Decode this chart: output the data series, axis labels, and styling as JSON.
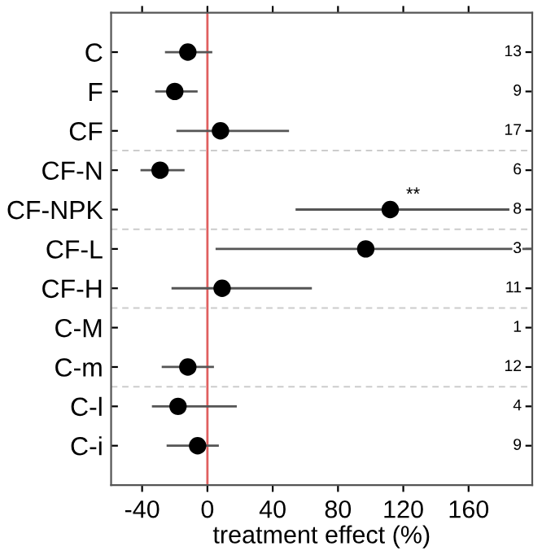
{
  "chart_data": {
    "type": "scatter",
    "orientation": "horizontal",
    "xlabel": "treatment effect (%)",
    "categories": [
      "C",
      "F",
      "CF",
      "CF-N",
      "CF-NPK",
      "CF-L",
      "CF-H",
      "C-M",
      "C-m",
      "C-l",
      "C-i"
    ],
    "values": [
      -12,
      -20,
      8,
      -29,
      112,
      97,
      9,
      null,
      -12,
      -18,
      -6
    ],
    "errors": [
      [
        -26,
        3
      ],
      [
        -32,
        -6
      ],
      [
        -19,
        50
      ],
      [
        -41,
        -14
      ],
      [
        54,
        185
      ],
      [
        5,
        199
      ],
      [
        -22,
        64
      ],
      null,
      [
        -28,
        4
      ],
      [
        -34,
        18
      ],
      [
        -25,
        7
      ]
    ],
    "color": "#000000",
    "marker": "circle",
    "grid": false,
    "xlim": [
      -59,
      199
    ],
    "xticks": [
      -40,
      0,
      40,
      80,
      120,
      160
    ],
    "ref_lines": [
      {
        "axis": "x",
        "value": 0,
        "color": "#e06060",
        "line_style": "solid"
      }
    ],
    "annotations": [
      "**",
      "13",
      "9",
      "17",
      "6",
      "8",
      "3",
      "11",
      "1",
      "12",
      "4",
      "9"
    ]
  }
}
